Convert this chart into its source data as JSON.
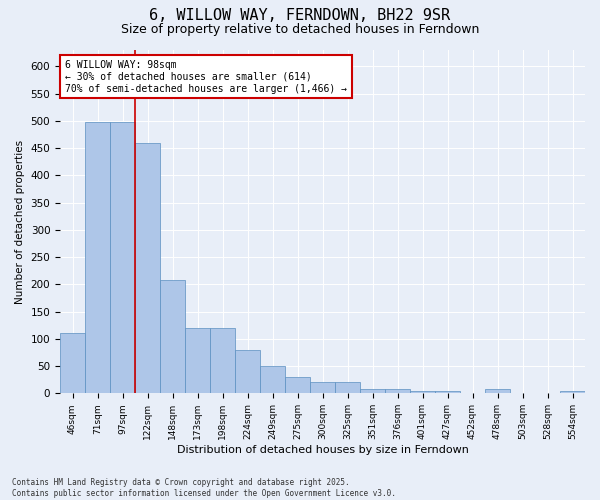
{
  "title1": "6, WILLOW WAY, FERNDOWN, BH22 9SR",
  "title2": "Size of property relative to detached houses in Ferndown",
  "xlabel": "Distribution of detached houses by size in Ferndown",
  "ylabel": "Number of detached properties",
  "categories": [
    "46sqm",
    "71sqm",
    "97sqm",
    "122sqm",
    "148sqm",
    "173sqm",
    "198sqm",
    "224sqm",
    "249sqm",
    "275sqm",
    "300sqm",
    "325sqm",
    "351sqm",
    "376sqm",
    "401sqm",
    "427sqm",
    "452sqm",
    "478sqm",
    "503sqm",
    "528sqm",
    "554sqm"
  ],
  "values": [
    110,
    497,
    497,
    460,
    208,
    120,
    120,
    80,
    50,
    30,
    20,
    20,
    8,
    8,
    5,
    5,
    0,
    8,
    0,
    0,
    5
  ],
  "bar_color": "#aec6e8",
  "bar_edge_color": "#5a8fc0",
  "annotation_line1": "6 WILLOW WAY: 98sqm",
  "annotation_line2": "← 30% of detached houses are smaller (614)",
  "annotation_line3": "70% of semi-detached houses are larger (1,466) →",
  "annotation_box_color": "#ffffff",
  "annotation_box_edge": "#cc0000",
  "background_color": "#e8eef8",
  "plot_bg_color": "#e8eef8",
  "footer_line1": "Contains HM Land Registry data © Crown copyright and database right 2025.",
  "footer_line2": "Contains public sector information licensed under the Open Government Licence v3.0.",
  "ylim": [
    0,
    630
  ],
  "yticks": [
    0,
    50,
    100,
    150,
    200,
    250,
    300,
    350,
    400,
    450,
    500,
    550,
    600
  ],
  "grid_color": "#ffffff",
  "title_fontsize": 11,
  "subtitle_fontsize": 9,
  "vline_index": 2.0
}
